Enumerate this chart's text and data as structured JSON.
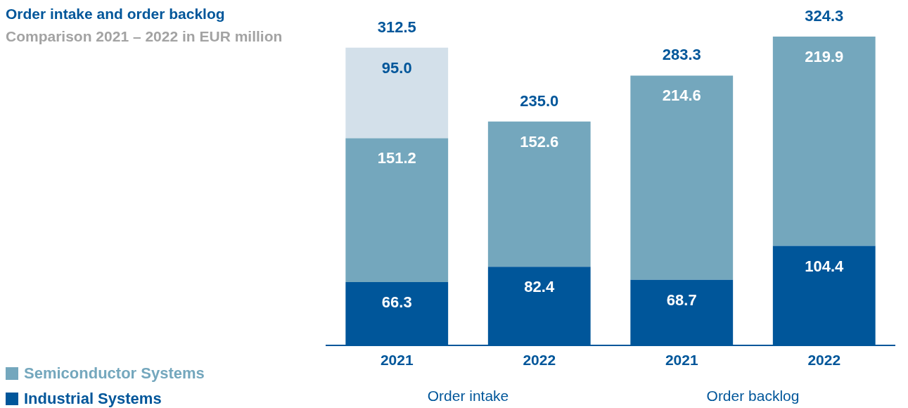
{
  "chart_data": {
    "type": "bar",
    "title": "Order intake and order backlog",
    "subtitle": "Comparison 2021 – 2022 in EUR million",
    "annotations": [
      "Order intake",
      "Order backlog"
    ],
    "categories": [
      "2021",
      "2022",
      "2021",
      "2022"
    ],
    "stacked": true,
    "tick_labels": "x",
    "legend": "bottom left",
    "totals": [
      "312.5",
      "235.0",
      "283.3",
      "324.3"
    ],
    "series": [
      {
        "name": "Industrial Systems",
        "color": "#00569a",
        "values": [
          66.3,
          82.4,
          68.7,
          104.4
        ],
        "value_labels": [
          "66.3",
          "82.4",
          "68.7",
          "104.4"
        ]
      },
      {
        "name": "Semiconductor Systems",
        "color": "#74a7bd",
        "values": [
          151.2,
          152.6,
          214.6,
          219.9
        ],
        "value_labels": [
          "151.2",
          "152.6",
          "214.6",
          "219.9"
        ]
      },
      {
        "color": "#d3e0ea",
        "values": [
          95.0,
          null,
          null,
          null
        ],
        "value_labels": [
          "95.0",
          null,
          null,
          null
        ]
      }
    ]
  }
}
